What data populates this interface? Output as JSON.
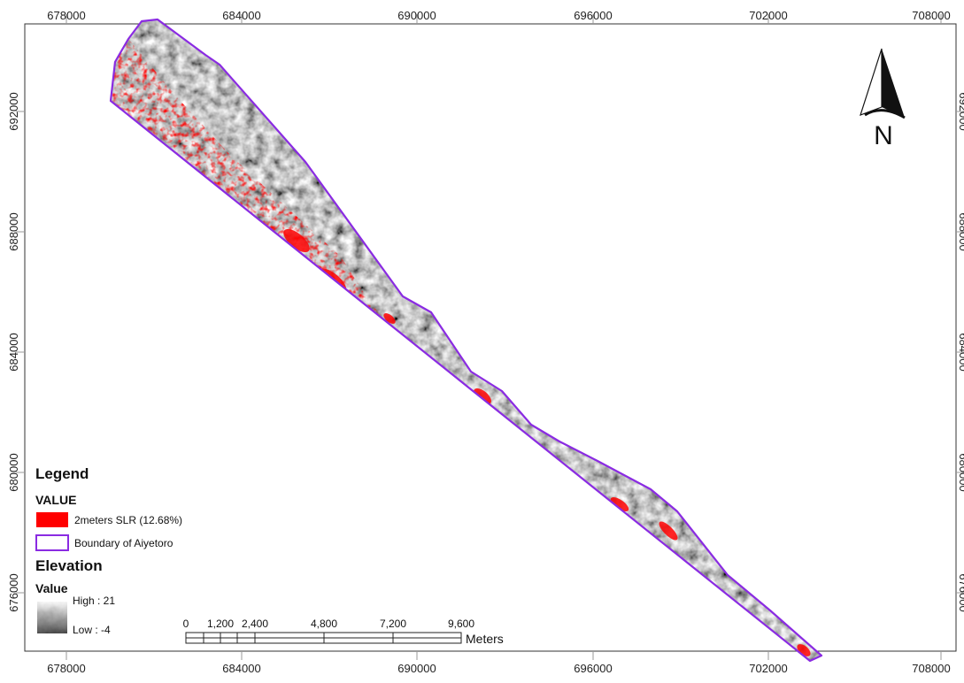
{
  "map": {
    "x_ticks": [
      "678000",
      "684000",
      "690000",
      "696000",
      "702000",
      "708000"
    ],
    "y_ticks": [
      "692000",
      "688000",
      "684000",
      "680000",
      "676000"
    ],
    "north_arrow_label": "N"
  },
  "legend": {
    "title": "Legend",
    "value_heading": "VALUE",
    "slr_label": "2meters SLR (12.68%)",
    "boundary_label": "Boundary of Aiyetoro",
    "elevation_heading": "Elevation",
    "elevation_value_heading": "Value",
    "high_label": "High : 21",
    "low_label": "Low : -4",
    "colors": {
      "slr": "#ff0000",
      "boundary": "#8a2be2"
    }
  },
  "scale_bar": {
    "labels": [
      "0",
      "1,200",
      "2,400",
      "4,800",
      "7,200",
      "9,600"
    ],
    "unit": "Meters"
  }
}
